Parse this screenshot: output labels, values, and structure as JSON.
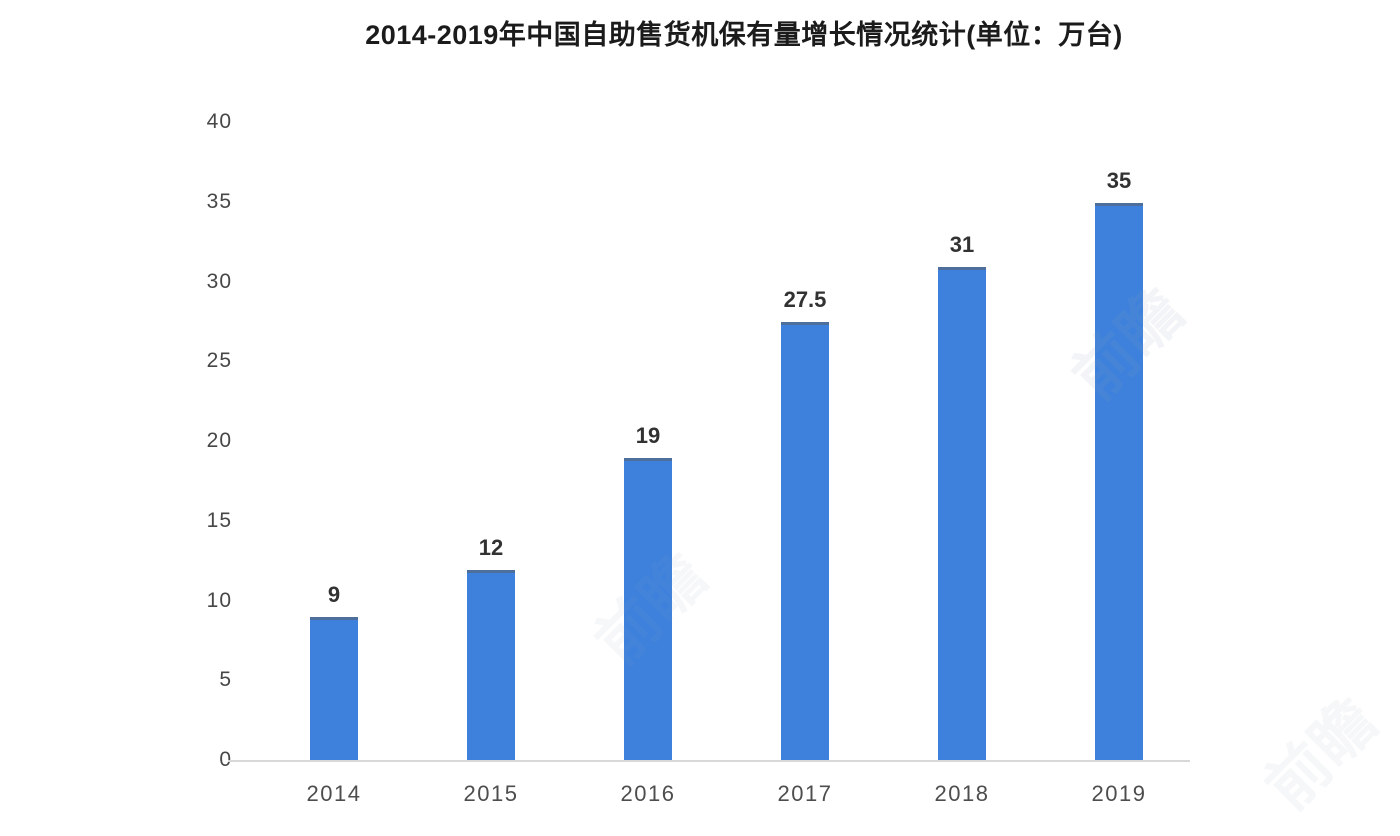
{
  "title": "2014-2019年中国自助售货机保有量增长情况统计(单位：万台)",
  "watermark_text": "前瞻",
  "chart_data": {
    "type": "bar",
    "title": "2014-2019年中国自助售货机保有量增长情况统计(单位：万台)",
    "unit": "万台",
    "categories": [
      "2014",
      "2015",
      "2016",
      "2017",
      "2018",
      "2019"
    ],
    "values": [
      9,
      12,
      19,
      27.5,
      31,
      35
    ],
    "data_labels": [
      "9",
      "12",
      "19",
      "27.5",
      "31",
      "35"
    ],
    "series_name": "自助售货机保有量",
    "xlabel": "",
    "ylabel": "",
    "ylim": [
      0,
      40
    ],
    "yticks": [
      0,
      5,
      10,
      15,
      20,
      25,
      30,
      35,
      40
    ],
    "grid": false,
    "legend": false,
    "bar_color": "#3d81dc",
    "bar_top_edge_color": "#4e6e9b",
    "axis_line_color": "#d8d8d8",
    "tick_label_color": "#474747",
    "data_label_color": "#323232",
    "title_color": "#1b1b1b",
    "background_color": "#ffffff"
  }
}
